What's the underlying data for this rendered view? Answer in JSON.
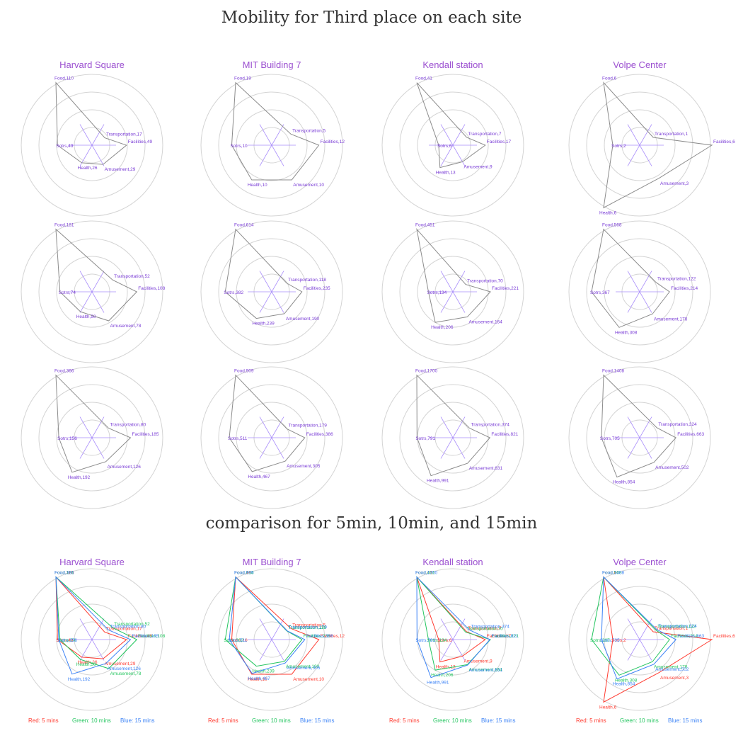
{
  "headings": {
    "top": "Mobility for Third place on each site",
    "bottom": "comparison for 5min, 10min, and 15min"
  },
  "colors": {
    "site_title": "#9b4fd0",
    "label": "#7a3dd6",
    "polygon": "#8c8c8c",
    "spoke": "#a78bfa",
    "ring": "#d4d4d4",
    "red": "#ff3b30",
    "green": "#22c55e",
    "blue": "#3b82f6",
    "black": "#333333"
  },
  "chart_data": [
    {
      "type": "radar",
      "title": "Mobility for Third place on each site",
      "axes": [
        "Food",
        "Transportation",
        "Facilities",
        "Amusement",
        "Health",
        "Sotrs"
      ],
      "sites": [
        "Harvard Square",
        "MIT Building 7",
        "Kendall station",
        "Volpe Center"
      ],
      "rows": [
        [
          [
            110,
            17,
            49,
            29,
            26,
            49
          ],
          [
            19,
            5,
            12,
            10,
            10,
            10
          ],
          [
            41,
            7,
            17,
            9,
            13,
            6
          ],
          [
            6,
            1,
            6,
            3,
            6,
            2
          ]
        ],
        [
          [
            181,
            52,
            108,
            78,
            50,
            74
          ],
          [
            614,
            118,
            235,
            190,
            239,
            382
          ],
          [
            451,
            70,
            221,
            164,
            206,
            134
          ],
          [
            568,
            122,
            214,
            178,
            308,
            367
          ]
        ],
        [
          [
            366,
            80,
            185,
            126,
            192,
            156
          ],
          [
            909,
            179,
            386,
            305,
            467,
            511
          ],
          [
            1700,
            374,
            821,
            631,
            991,
            791
          ],
          [
            1408,
            324,
            663,
            502,
            854,
            705
          ]
        ]
      ]
    },
    {
      "type": "radar",
      "title": "comparison for 5min, 10min, and 15min",
      "axes": [
        "Food",
        "Transportation",
        "Facilities",
        "Amusement",
        "Health",
        "Sotrs"
      ],
      "sites": [
        "Harvard Square",
        "MIT Building 7",
        "Kendall station",
        "Volpe Center"
      ],
      "legend": [
        "Red: 5 mins",
        "Green: 10 mins",
        "Blue: 15 mins"
      ],
      "series_colors": [
        "#ff3b30",
        "#22c55e",
        "#3b82f6"
      ]
    }
  ]
}
